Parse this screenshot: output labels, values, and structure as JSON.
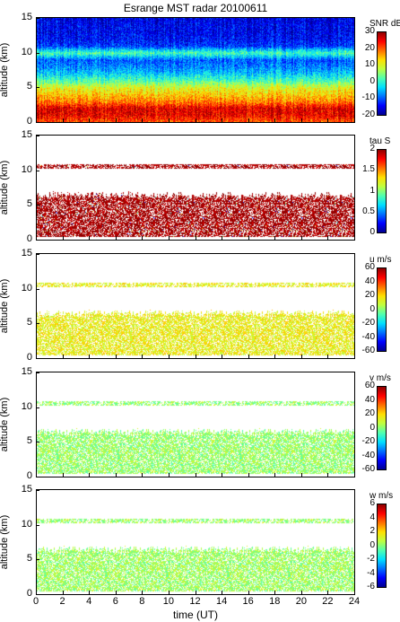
{
  "title": "Esrange MST radar 20100611",
  "xlabel": "time (UT)",
  "colors": {
    "jet": [
      "#00008f",
      "#0000ff",
      "#0070ff",
      "#00dfff",
      "#50ffaf",
      "#bfff40",
      "#ffdf00",
      "#ff7000",
      "#ff0000",
      "#8f0000"
    ]
  },
  "chart_data": [
    {
      "type": "heatmap",
      "name": "SNR",
      "ylabel": "altitude (km)",
      "xlim": [
        0,
        24
      ],
      "ylim": [
        0,
        15
      ],
      "xticks": [
        "0",
        "2",
        "4",
        "6",
        "8",
        "10",
        "12",
        "14",
        "16",
        "18",
        "20",
        "22",
        "24"
      ],
      "yticks": [
        "0",
        "5",
        "10",
        "15"
      ],
      "colorbar": {
        "label": "SNR dB",
        "min": -20,
        "max": 30,
        "ticks": [
          "30",
          "20",
          "10",
          "0",
          "-10",
          "-20"
        ]
      },
      "coverage": "full",
      "profile_altitude_km": [
        0,
        1,
        2,
        3,
        4,
        5,
        6,
        7,
        8,
        9,
        10,
        11,
        12,
        13,
        14,
        15
      ],
      "profile_snr_db": [
        20,
        25,
        26,
        18,
        14,
        10,
        2,
        -4,
        -8,
        -10,
        2,
        -12,
        -14,
        -15,
        -15,
        -16
      ]
    },
    {
      "type": "heatmap",
      "name": "tau",
      "ylabel": "altitude (km)",
      "xlim": [
        0,
        24
      ],
      "ylim": [
        0,
        15
      ],
      "xticks": [
        "0",
        "2",
        "4",
        "6",
        "8",
        "10",
        "12",
        "14",
        "16",
        "18",
        "20",
        "22",
        "24"
      ],
      "yticks": [
        "0",
        "5",
        "10",
        "15"
      ],
      "colorbar": {
        "label": "tau S",
        "min": 0,
        "max": 2,
        "ticks": [
          "2",
          "1.5",
          "1",
          "0.5",
          "0"
        ]
      },
      "coverage": "lower 0.5-6.5 km and a band near 10.5 km",
      "typical_value": 2
    },
    {
      "type": "heatmap",
      "name": "u",
      "ylabel": "altitude (km)",
      "xlim": [
        0,
        24
      ],
      "ylim": [
        0,
        15
      ],
      "xticks": [
        "0",
        "2",
        "4",
        "6",
        "8",
        "10",
        "12",
        "14",
        "16",
        "18",
        "20",
        "22",
        "24"
      ],
      "yticks": [
        "0",
        "5",
        "10",
        "15"
      ],
      "colorbar": {
        "label": "u m/s",
        "min": -60,
        "max": 60,
        "ticks": [
          "60",
          "40",
          "20",
          "0",
          "-20",
          "-40",
          "-60"
        ]
      },
      "coverage": "lower 0.5-7 km and a band near 10.5 km",
      "typical_value": 15
    },
    {
      "type": "heatmap",
      "name": "v",
      "ylabel": "altitude (km)",
      "xlim": [
        0,
        24
      ],
      "ylim": [
        0,
        15
      ],
      "xticks": [
        "0",
        "2",
        "4",
        "6",
        "8",
        "10",
        "12",
        "14",
        "16",
        "18",
        "20",
        "22",
        "24"
      ],
      "yticks": [
        "0",
        "5",
        "10",
        "15"
      ],
      "colorbar": {
        "label": "v m/s",
        "min": -60,
        "max": 60,
        "ticks": [
          "60",
          "40",
          "20",
          "0",
          "-20",
          "-40",
          "-60"
        ]
      },
      "coverage": "lower 0.5-7 km and a band near 10.5 km",
      "typical_value": 2
    },
    {
      "type": "heatmap",
      "name": "w",
      "ylabel": "altitude (km)",
      "xlim": [
        0,
        24
      ],
      "ylim": [
        0,
        15
      ],
      "xticks": [
        "0",
        "2",
        "4",
        "6",
        "8",
        "10",
        "12",
        "14",
        "16",
        "18",
        "20",
        "22",
        "24"
      ],
      "yticks": [
        "0",
        "5",
        "10",
        "15"
      ],
      "colorbar": {
        "label": "w m/s",
        "min": -6,
        "max": 6,
        "ticks": [
          "6",
          "4",
          "2",
          "0",
          "-2",
          "-4",
          "-6"
        ]
      },
      "coverage": "lower 0.5-7 km and a band near 10.5 km",
      "typical_value": 0.3
    }
  ]
}
